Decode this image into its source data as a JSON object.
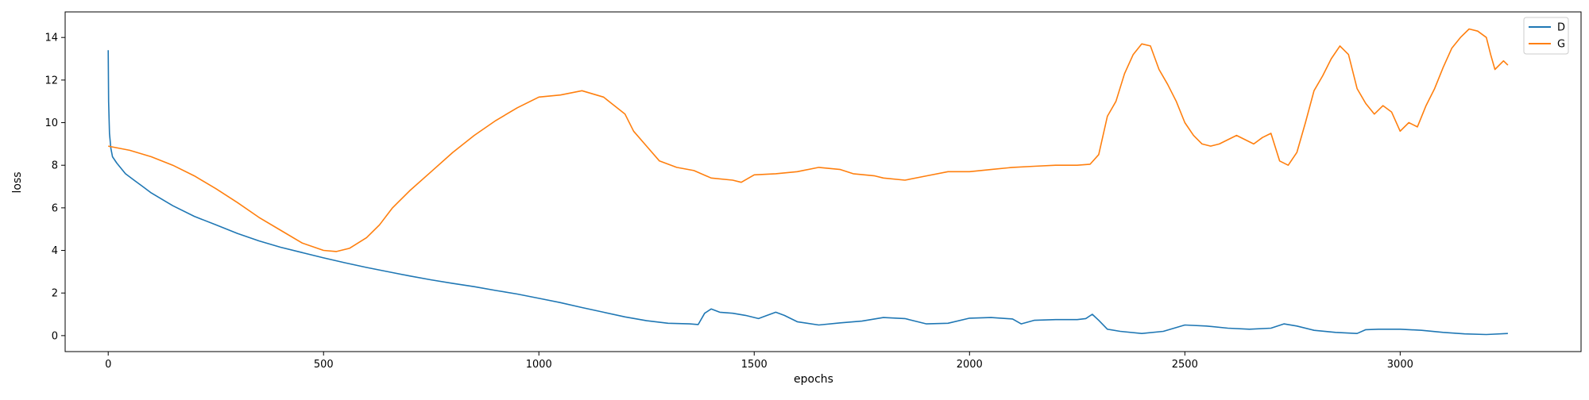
{
  "chart_data": {
    "type": "line",
    "title": "",
    "xlabel": "epochs",
    "ylabel": "loss",
    "xlim": [
      -100,
      3420
    ],
    "ylim": [
      -0.75,
      15.2
    ],
    "xticks": [
      0,
      500,
      1000,
      1500,
      2000,
      2500,
      3000
    ],
    "yticks": [
      0,
      2,
      4,
      6,
      8,
      10,
      12,
      14
    ],
    "grid": false,
    "legend_position": "top-right",
    "series": [
      {
        "name": "D",
        "color": "#1f77b4",
        "points": [
          [
            0,
            13.4
          ],
          [
            1,
            11.0
          ],
          [
            3,
            9.5
          ],
          [
            6,
            8.8
          ],
          [
            10,
            8.4
          ],
          [
            20,
            8.1
          ],
          [
            40,
            7.6
          ],
          [
            60,
            7.3
          ],
          [
            80,
            7.0
          ],
          [
            100,
            6.7
          ],
          [
            150,
            6.1
          ],
          [
            200,
            5.6
          ],
          [
            250,
            5.2
          ],
          [
            300,
            4.8
          ],
          [
            350,
            4.45
          ],
          [
            400,
            4.15
          ],
          [
            450,
            3.9
          ],
          [
            500,
            3.65
          ],
          [
            550,
            3.42
          ],
          [
            600,
            3.2
          ],
          [
            650,
            3.0
          ],
          [
            700,
            2.8
          ],
          [
            750,
            2.62
          ],
          [
            800,
            2.45
          ],
          [
            850,
            2.3
          ],
          [
            900,
            2.12
          ],
          [
            950,
            1.95
          ],
          [
            1000,
            1.75
          ],
          [
            1050,
            1.55
          ],
          [
            1100,
            1.32
          ],
          [
            1150,
            1.1
          ],
          [
            1200,
            0.88
          ],
          [
            1250,
            0.7
          ],
          [
            1300,
            0.58
          ],
          [
            1350,
            0.55
          ],
          [
            1370,
            0.52
          ],
          [
            1385,
            1.05
          ],
          [
            1400,
            1.25
          ],
          [
            1420,
            1.1
          ],
          [
            1450,
            1.05
          ],
          [
            1480,
            0.95
          ],
          [
            1510,
            0.8
          ],
          [
            1530,
            0.95
          ],
          [
            1550,
            1.1
          ],
          [
            1570,
            0.95
          ],
          [
            1600,
            0.65
          ],
          [
            1650,
            0.5
          ],
          [
            1700,
            0.6
          ],
          [
            1750,
            0.68
          ],
          [
            1800,
            0.85
          ],
          [
            1850,
            0.8
          ],
          [
            1900,
            0.55
          ],
          [
            1950,
            0.58
          ],
          [
            2000,
            0.82
          ],
          [
            2050,
            0.85
          ],
          [
            2100,
            0.78
          ],
          [
            2120,
            0.55
          ],
          [
            2150,
            0.72
          ],
          [
            2200,
            0.75
          ],
          [
            2250,
            0.75
          ],
          [
            2270,
            0.8
          ],
          [
            2285,
            1.0
          ],
          [
            2300,
            0.72
          ],
          [
            2320,
            0.3
          ],
          [
            2350,
            0.2
          ],
          [
            2400,
            0.1
          ],
          [
            2450,
            0.2
          ],
          [
            2500,
            0.5
          ],
          [
            2550,
            0.45
          ],
          [
            2600,
            0.35
          ],
          [
            2650,
            0.3
          ],
          [
            2700,
            0.35
          ],
          [
            2730,
            0.55
          ],
          [
            2760,
            0.45
          ],
          [
            2800,
            0.25
          ],
          [
            2850,
            0.15
          ],
          [
            2900,
            0.1
          ],
          [
            2920,
            0.28
          ],
          [
            2950,
            0.3
          ],
          [
            3000,
            0.3
          ],
          [
            3050,
            0.25
          ],
          [
            3100,
            0.15
          ],
          [
            3150,
            0.08
          ],
          [
            3200,
            0.05
          ],
          [
            3250,
            0.1
          ]
        ]
      },
      {
        "name": "G",
        "color": "#ff7f0e",
        "points": [
          [
            0,
            8.9
          ],
          [
            50,
            8.7
          ],
          [
            100,
            8.4
          ],
          [
            150,
            8.0
          ],
          [
            200,
            7.5
          ],
          [
            250,
            6.9
          ],
          [
            300,
            6.25
          ],
          [
            350,
            5.55
          ],
          [
            400,
            4.95
          ],
          [
            450,
            4.35
          ],
          [
            500,
            4.0
          ],
          [
            530,
            3.95
          ],
          [
            560,
            4.1
          ],
          [
            600,
            4.6
          ],
          [
            630,
            5.2
          ],
          [
            660,
            6.0
          ],
          [
            700,
            6.8
          ],
          [
            750,
            7.7
          ],
          [
            800,
            8.6
          ],
          [
            850,
            9.4
          ],
          [
            900,
            10.1
          ],
          [
            950,
            10.7
          ],
          [
            1000,
            11.2
          ],
          [
            1050,
            11.3
          ],
          [
            1100,
            11.5
          ],
          [
            1150,
            11.2
          ],
          [
            1200,
            10.4
          ],
          [
            1220,
            9.6
          ],
          [
            1250,
            8.9
          ],
          [
            1280,
            8.2
          ],
          [
            1320,
            7.9
          ],
          [
            1360,
            7.75
          ],
          [
            1400,
            7.4
          ],
          [
            1450,
            7.3
          ],
          [
            1470,
            7.2
          ],
          [
            1500,
            7.55
          ],
          [
            1550,
            7.6
          ],
          [
            1600,
            7.7
          ],
          [
            1650,
            7.9
          ],
          [
            1700,
            7.8
          ],
          [
            1730,
            7.6
          ],
          [
            1780,
            7.5
          ],
          [
            1800,
            7.4
          ],
          [
            1850,
            7.3
          ],
          [
            1900,
            7.5
          ],
          [
            1950,
            7.7
          ],
          [
            2000,
            7.7
          ],
          [
            2050,
            7.8
          ],
          [
            2100,
            7.9
          ],
          [
            2150,
            7.95
          ],
          [
            2200,
            8.0
          ],
          [
            2250,
            8.0
          ],
          [
            2280,
            8.05
          ],
          [
            2300,
            8.5
          ],
          [
            2320,
            10.3
          ],
          [
            2340,
            11.0
          ],
          [
            2360,
            12.3
          ],
          [
            2380,
            13.2
          ],
          [
            2400,
            13.7
          ],
          [
            2420,
            13.6
          ],
          [
            2440,
            12.5
          ],
          [
            2460,
            11.8
          ],
          [
            2480,
            11.0
          ],
          [
            2500,
            10.0
          ],
          [
            2520,
            9.4
          ],
          [
            2540,
            9.0
          ],
          [
            2560,
            8.9
          ],
          [
            2580,
            9.0
          ],
          [
            2600,
            9.2
          ],
          [
            2620,
            9.4
          ],
          [
            2640,
            9.2
          ],
          [
            2660,
            9.0
          ],
          [
            2680,
            9.3
          ],
          [
            2700,
            9.5
          ],
          [
            2720,
            8.2
          ],
          [
            2740,
            8.0
          ],
          [
            2760,
            8.6
          ],
          [
            2780,
            10.0
          ],
          [
            2800,
            11.5
          ],
          [
            2820,
            12.2
          ],
          [
            2840,
            13.0
          ],
          [
            2860,
            13.6
          ],
          [
            2880,
            13.2
          ],
          [
            2900,
            11.6
          ],
          [
            2920,
            10.9
          ],
          [
            2940,
            10.4
          ],
          [
            2960,
            10.8
          ],
          [
            2980,
            10.5
          ],
          [
            3000,
            9.6
          ],
          [
            3020,
            10.0
          ],
          [
            3040,
            9.8
          ],
          [
            3060,
            10.8
          ],
          [
            3080,
            11.6
          ],
          [
            3100,
            12.6
          ],
          [
            3120,
            13.5
          ],
          [
            3140,
            14.0
          ],
          [
            3160,
            14.4
          ],
          [
            3180,
            14.3
          ],
          [
            3200,
            14.0
          ],
          [
            3210,
            13.2
          ],
          [
            3220,
            12.5
          ],
          [
            3240,
            12.9
          ],
          [
            3250,
            12.7
          ]
        ]
      }
    ]
  }
}
